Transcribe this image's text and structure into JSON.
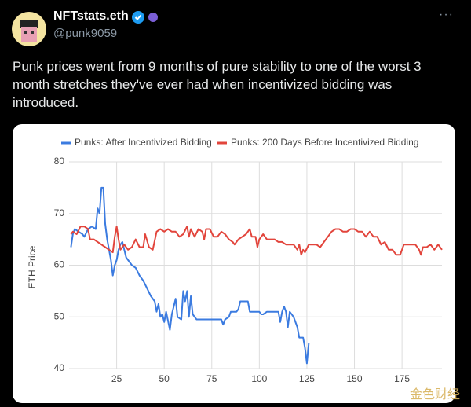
{
  "tweet": {
    "name": "NFTstats.eth",
    "handle": "@punk9059",
    "text": "Punk prices went from 9 months of pure stability to one of the worst 3 month stretches they've ever had when incentivized bidding was introduced.",
    "watermark": "金色财经"
  },
  "chart_data": {
    "type": "line",
    "ylabel": "ETH Price",
    "xlim": [
      0,
      196
    ],
    "ylim": [
      40,
      80
    ],
    "xticks": [
      25,
      50,
      75,
      100,
      125,
      150,
      175
    ],
    "yticks": [
      40,
      50,
      60,
      70,
      80
    ],
    "grid": true,
    "legend": "top",
    "series": [
      {
        "name": "Punks: After Incentivized Bidding",
        "color": "#3b7be0",
        "x": [
          1,
          2,
          3,
          5,
          7,
          8,
          10,
          12,
          14,
          15,
          16,
          17,
          18,
          19,
          20,
          21,
          22,
          23,
          24,
          25,
          26,
          27,
          28,
          29,
          30,
          31,
          33,
          35,
          37,
          39,
          41,
          43,
          45,
          46,
          47,
          48,
          49,
          50,
          51,
          53,
          54,
          55,
          56,
          57,
          59,
          60,
          61,
          62,
          63,
          64,
          65,
          67,
          70,
          75,
          80,
          81,
          82,
          84,
          85,
          88,
          89,
          90,
          92,
          94,
          95,
          97,
          100,
          101,
          102,
          104,
          108,
          110,
          111,
          112,
          113,
          114,
          115,
          116,
          118,
          120,
          121,
          122,
          123,
          124,
          125,
          126
        ],
        "values": [
          63.5,
          66,
          67,
          66.5,
          66,
          65.5,
          67,
          67.5,
          67,
          71,
          70,
          75,
          75,
          68,
          65,
          63,
          61,
          58,
          60,
          61,
          63,
          64,
          64.5,
          63,
          61.5,
          61,
          60,
          59.5,
          58,
          57,
          55.5,
          54,
          53,
          51,
          52.5,
          50,
          50.5,
          49,
          51,
          47.5,
          50.5,
          52,
          53.5,
          50,
          49.5,
          55,
          53,
          55,
          50,
          54,
          50.5,
          49.5,
          49.5,
          49.5,
          49.5,
          48.5,
          49.5,
          50,
          51,
          51,
          51.5,
          53,
          53,
          53,
          51,
          51,
          51,
          50.5,
          50.5,
          51,
          51,
          51,
          49,
          51,
          52,
          51,
          48,
          51,
          50,
          48,
          46,
          46,
          46,
          44,
          41,
          45
        ]
      },
      {
        "name": "Punks: 200 Days Before Incentivized Bidding",
        "color": "#e2453c",
        "x": [
          1,
          2,
          4,
          6,
          8,
          10,
          11,
          13,
          15,
          17,
          19,
          21,
          23,
          24,
          25,
          26,
          27,
          29,
          31,
          33,
          35,
          37,
          39,
          40,
          42,
          44,
          46,
          48,
          50,
          52,
          54,
          56,
          58,
          60,
          62,
          63,
          64,
          66,
          68,
          70,
          71,
          72,
          74,
          76,
          78,
          80,
          82,
          84,
          86,
          87,
          89,
          91,
          93,
          95,
          96,
          98,
          99,
          100,
          102,
          104,
          106,
          108,
          110,
          112,
          114,
          116,
          118,
          120,
          121,
          122,
          123,
          124,
          126,
          128,
          130,
          132,
          134,
          136,
          138,
          140,
          142,
          144,
          146,
          148,
          150,
          152,
          154,
          156,
          158,
          160,
          162,
          164,
          166,
          168,
          170,
          172,
          174,
          176,
          178,
          180,
          182,
          184,
          185,
          186,
          188,
          190,
          192,
          194,
          196
        ],
        "values": [
          66,
          66.5,
          66,
          67.5,
          67.5,
          67,
          65,
          65,
          64.5,
          64,
          63.5,
          63,
          62.5,
          65.5,
          67.5,
          65,
          63,
          64,
          63,
          63.5,
          65,
          63.5,
          63.5,
          66,
          63.5,
          63,
          66.5,
          67,
          66.5,
          67,
          66.5,
          66.5,
          65.5,
          66,
          67.5,
          65.5,
          67,
          65.5,
          67,
          66.5,
          65,
          67,
          67,
          65.5,
          65.5,
          66.5,
          66,
          65,
          64.5,
          64,
          65,
          65.5,
          66,
          67,
          65.5,
          65.5,
          63.5,
          65,
          66,
          65,
          65,
          65,
          64.5,
          64.5,
          64,
          64,
          64,
          63,
          64,
          62,
          63,
          62.5,
          64,
          64,
          64,
          63.5,
          64.5,
          65.5,
          66.5,
          67,
          67,
          66.5,
          66.5,
          67,
          67,
          66.5,
          66.5,
          65.5,
          66.5,
          65.5,
          65.5,
          64,
          64.5,
          63,
          63,
          62,
          62,
          64,
          64,
          64,
          64,
          63,
          62,
          63.5,
          63.5,
          64,
          63,
          64,
          63
        ]
      }
    ]
  }
}
